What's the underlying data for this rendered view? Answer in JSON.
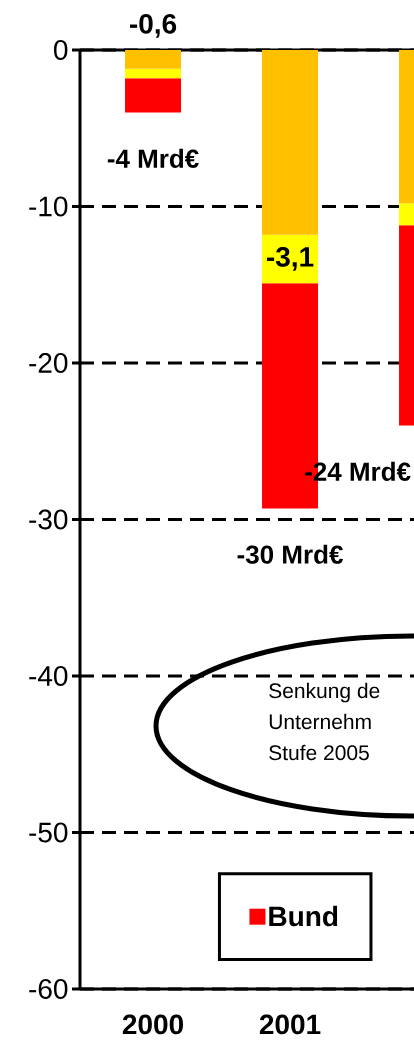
{
  "chart_data": {
    "type": "bar",
    "stacked": true,
    "categories": [
      "2000",
      "2001",
      null
    ],
    "series": [
      {
        "color": "#ffc000",
        "values": [
          -1.2,
          -11.8,
          -9.8
        ]
      },
      {
        "color": "#ffff00",
        "values": [
          -0.6,
          -3.1,
          -1.4
        ],
        "value_labels": [
          "-0,6",
          "-3,1",
          null
        ]
      },
      {
        "name": "Bund",
        "color": "#ff0000",
        "values": [
          -2.2,
          -14.4,
          -12.8
        ]
      }
    ],
    "totals": [
      "-4 Mrd€",
      "-30 Mrd€",
      "-24 Mrd€"
    ],
    "annotations": [
      "Senkung de",
      "Unternehm",
      "Stufe 2005"
    ],
    "ylim": [
      -60,
      0
    ],
    "yticks": [
      -60,
      -50,
      -40,
      -30,
      -20,
      -10,
      0
    ],
    "grid": "y",
    "legend": "bottom"
  }
}
